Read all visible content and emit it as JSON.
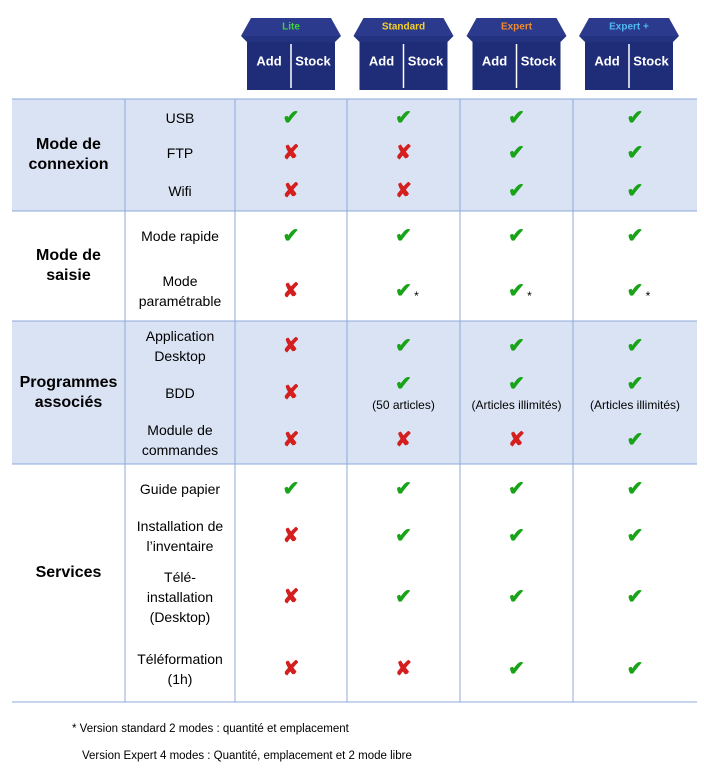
{
  "plans": [
    {
      "label": "Lite",
      "color": "#3fd23f",
      "words": [
        "Add",
        "Stock"
      ]
    },
    {
      "label": "Standard",
      "color": "#f5d22a",
      "words": [
        "Add",
        "Stock"
      ]
    },
    {
      "label": "Expert",
      "color": "#f08a2a",
      "words": [
        "Add",
        "Stock"
      ]
    },
    {
      "label": "Expert +",
      "color": "#4fb8f0",
      "words": [
        "Add",
        "Stock"
      ]
    }
  ],
  "sections": [
    {
      "title": "Mode de\nconnexion",
      "rows": [
        {
          "feature": "USB",
          "cells": [
            {
              "mark": "✔"
            },
            {
              "mark": "✔"
            },
            {
              "mark": "✔"
            },
            {
              "mark": "✔"
            }
          ]
        },
        {
          "feature": "FTP",
          "cells": [
            {
              "mark": "✘"
            },
            {
              "mark": "✘"
            },
            {
              "mark": "✔"
            },
            {
              "mark": "✔"
            }
          ]
        },
        {
          "feature": "Wifi",
          "cells": [
            {
              "mark": "✘"
            },
            {
              "mark": "✘"
            },
            {
              "mark": "✔"
            },
            {
              "mark": "✔"
            }
          ]
        }
      ]
    },
    {
      "title": "Mode de\nsaisie",
      "rows": [
        {
          "feature": "Mode rapide",
          "cells": [
            {
              "mark": "✔"
            },
            {
              "mark": "✔"
            },
            {
              "mark": "✔"
            },
            {
              "mark": "✔"
            }
          ]
        },
        {
          "feature": "Mode\nparamétrable",
          "cells": [
            {
              "mark": "✘"
            },
            {
              "mark": "✔",
              "note": "*"
            },
            {
              "mark": "✔",
              "note": "*"
            },
            {
              "mark": "✔",
              "note": "*"
            }
          ]
        }
      ]
    },
    {
      "title": "Programmes\nassociés",
      "rows": [
        {
          "feature": "Application\nDesktop",
          "cells": [
            {
              "mark": "✘"
            },
            {
              "mark": "✔"
            },
            {
              "mark": "✔"
            },
            {
              "mark": "✔"
            }
          ]
        },
        {
          "feature": "BDD",
          "cells": [
            {
              "mark": "✘"
            },
            {
              "mark": "✔",
              "note": "(50 articles)"
            },
            {
              "mark": "✔",
              "note": "(Articles illimités)"
            },
            {
              "mark": "✔",
              "note": "(Articles illimités)"
            }
          ]
        },
        {
          "feature": "Module de\ncommandes",
          "cells": [
            {
              "mark": "✘"
            },
            {
              "mark": "✘"
            },
            {
              "mark": "✘"
            },
            {
              "mark": "✔"
            }
          ]
        }
      ]
    },
    {
      "title": "Services",
      "rows": [
        {
          "feature": "Guide papier",
          "cells": [
            {
              "mark": "✔"
            },
            {
              "mark": "✔"
            },
            {
              "mark": "✔"
            },
            {
              "mark": "✔"
            }
          ]
        },
        {
          "feature": "Installation de\nl’inventaire",
          "cells": [
            {
              "mark": "✘"
            },
            {
              "mark": "✔"
            },
            {
              "mark": "✔"
            },
            {
              "mark": "✔"
            }
          ]
        },
        {
          "feature": "Télé-\ninstallation\n(Desktop)",
          "cells": [
            {
              "mark": "✘"
            },
            {
              "mark": "✔"
            },
            {
              "mark": "✔"
            },
            {
              "mark": "✔"
            }
          ]
        },
        {
          "feature": "Téléformation\n(1h)",
          "cells": [
            {
              "mark": "✘"
            },
            {
              "mark": "✘"
            },
            {
              "mark": "✔"
            },
            {
              "mark": "✔"
            }
          ]
        }
      ]
    }
  ],
  "footnotes": [
    "* Version standard 2 modes : quantité et emplacement",
    "Version Expert 4 modes : Quantité, emplacement et 2 mode libre"
  ]
}
